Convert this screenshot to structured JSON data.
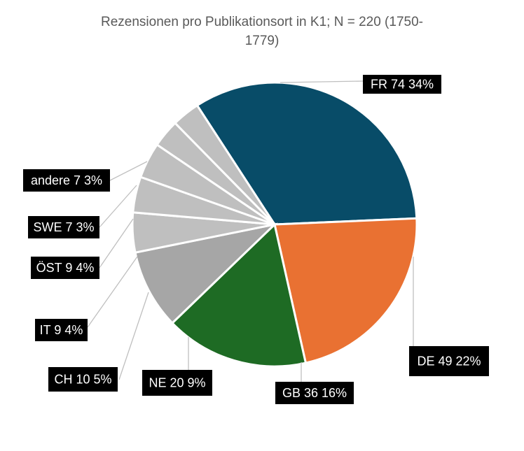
{
  "chart_data": {
    "type": "pie",
    "title_line1": "Rezensionen pro Publikationsort in K1; N = 220  (1750-",
    "title_line2": "1779)",
    "slices": [
      {
        "label": "FR",
        "value": 74,
        "percent": "34%",
        "color": "#084C68",
        "text": "FR 74 34%"
      },
      {
        "label": "DE",
        "value": 49,
        "percent": "22%",
        "color": "#E97132",
        "text": "DE 49 22%"
      },
      {
        "label": "GB",
        "value": 36,
        "percent": "16%",
        "color": "#1E6B24",
        "text": "GB 36 16%"
      },
      {
        "label": "NE",
        "value": 20,
        "percent": "9%",
        "color": "#A6A6A6",
        "text": "NE 20 9%"
      },
      {
        "label": "CH",
        "value": 10,
        "percent": "5%",
        "color": "#BFBFBF",
        "text": "CH 10 5%"
      },
      {
        "label": "IT",
        "value": 9,
        "percent": "4%",
        "color": "#BFBFBF",
        "text": "IT 9 4%"
      },
      {
        "label": "ÖST",
        "value": 9,
        "percent": "4%",
        "color": "#BFBFBF",
        "text": "ÖST 9 4%"
      },
      {
        "label": "SWE",
        "value": 7,
        "percent": "3%",
        "color": "#BFBFBF",
        "text": "SWE 7 3%"
      },
      {
        "label": "andere",
        "value": 7,
        "percent": "3%",
        "color": "#BFBFBF",
        "text": "andere 7 3%"
      }
    ],
    "legend": "none",
    "data_labels": "outside-with-leader-lines"
  }
}
